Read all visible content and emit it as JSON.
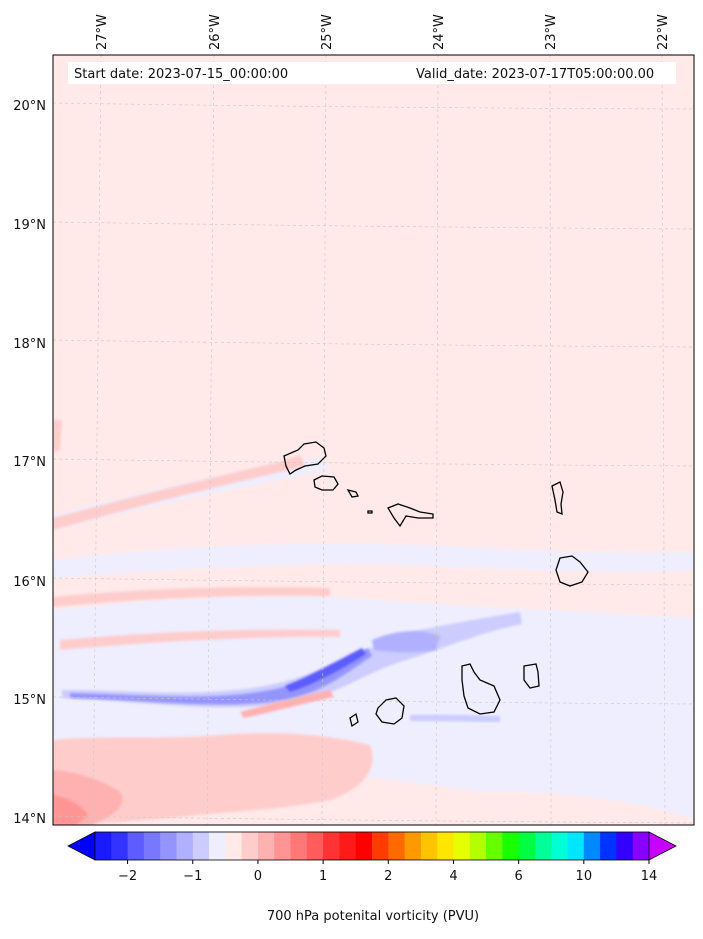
{
  "map": {
    "start_label": "Start date: 2023-07-15_00:00:00",
    "valid_label": "Valid_date: 2023-07-17T05:00:00.00",
    "lon_labels": [
      "27°W",
      "26°W",
      "25°W",
      "24°W",
      "23°W",
      "22°W"
    ],
    "lat_labels": [
      "20°N",
      "19°N",
      "18°N",
      "17°N",
      "16°N",
      "15°N",
      "14°N"
    ],
    "background_color": "#ffe9e9",
    "gridlines": true,
    "coastline_color": "#000000"
  },
  "colorbar": {
    "label": "700 hPa potenital vorticity (PVU)",
    "tick_labels": [
      "−2",
      "−1",
      "0",
      "1",
      "2",
      "4",
      "6",
      "10",
      "14"
    ],
    "colors": [
      "#1a1aff",
      "#3333ff",
      "#5c5cff",
      "#7878ff",
      "#9494ff",
      "#b0b0ff",
      "#ccccff",
      "#eeeeff",
      "#ffe9e9",
      "#ffcccc",
      "#ffb0b0",
      "#ff9494",
      "#ff7878",
      "#ff5c5c",
      "#ff3333",
      "#ff1a1a",
      "#ff0000",
      "#ff3b00",
      "#ff6a00",
      "#ff9900",
      "#ffc400",
      "#ffe600",
      "#e6ff00",
      "#b3ff00",
      "#66ff00",
      "#1aff00",
      "#00ff40",
      "#00ff99",
      "#00ffd5",
      "#00e6ff",
      "#0088ff",
      "#0033ff",
      "#3300ff",
      "#8800ff"
    ],
    "extend_low_color": "#0000ff",
    "extend_high_color": "#c800ff"
  }
}
